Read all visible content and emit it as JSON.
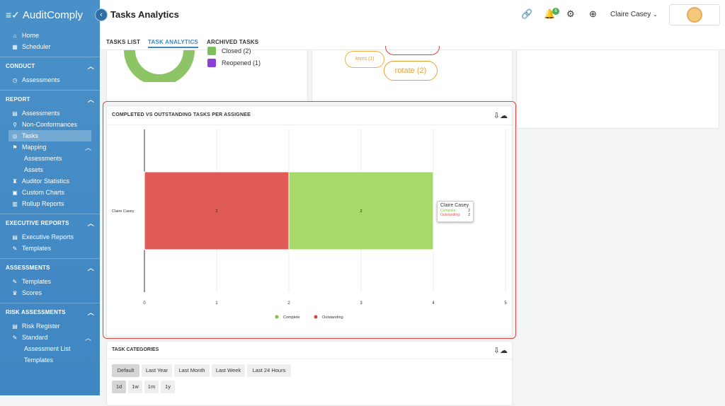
{
  "app": {
    "name": "AuditComply",
    "page_title": "Tasks Analytics"
  },
  "header": {
    "notification_count": "6",
    "user_name": "Claire Casey"
  },
  "sidebar": {
    "top": [
      {
        "label": "Home",
        "icon": "home-icon"
      },
      {
        "label": "Scheduler",
        "icon": "calendar-icon"
      }
    ],
    "sections": [
      {
        "title": "CONDUCT",
        "items": [
          {
            "label": "Assessments",
            "icon": "clock-icon"
          }
        ]
      },
      {
        "title": "REPORT",
        "items": [
          {
            "label": "Assessments",
            "icon": "list-icon"
          },
          {
            "label": "Non-Conformances",
            "icon": "search-icon"
          },
          {
            "label": "Tasks",
            "icon": "task-icon",
            "active": true
          },
          {
            "label": "Mapping",
            "icon": "pin-icon"
          },
          {
            "label": "Assessments",
            "sub": true
          },
          {
            "label": "Assets",
            "sub": true
          },
          {
            "label": "Auditor Statistics",
            "icon": "stats-icon"
          },
          {
            "label": "Custom Charts",
            "icon": "chart-icon"
          },
          {
            "label": "Rollup Reports",
            "icon": "report-icon"
          }
        ]
      },
      {
        "title": "EXECUTIVE REPORTS",
        "items": [
          {
            "label": "Executive Reports",
            "icon": "list-icon"
          },
          {
            "label": "Templates",
            "icon": "edit-icon"
          }
        ]
      },
      {
        "title": "ASSESSMENTS",
        "items": [
          {
            "label": "Templates",
            "icon": "edit-icon"
          },
          {
            "label": "Scores",
            "icon": "trophy-icon"
          }
        ]
      },
      {
        "title": "RISK ASSESSMENTS",
        "items": [
          {
            "label": "Risk Register",
            "icon": "list-icon"
          },
          {
            "label": "Standard",
            "icon": "edit-icon"
          },
          {
            "label": "Assessment List",
            "sub": true
          },
          {
            "label": "Templates",
            "sub": true
          }
        ]
      }
    ]
  },
  "tabs": [
    {
      "label": "TASKS LIST",
      "active": false
    },
    {
      "label": "TASK ANALYTICS",
      "active": true
    },
    {
      "label": "ARCHIVED TASKS",
      "active": false
    }
  ],
  "status_legend": [
    {
      "label": "Closed (2)",
      "color": "#7fbf5a"
    },
    {
      "label": "Reopened (1)",
      "color": "#8b3fd9"
    }
  ],
  "word_pills": [
    {
      "label": "items (1)"
    },
    {
      "label": "rotate (2)"
    }
  ],
  "assignee_chart": {
    "title": "COMPLETED VS OUTSTANDING TASKS PER ASSIGNEE",
    "tooltip": {
      "name": "Claire Casey",
      "rows": [
        {
          "label": "Complete:",
          "value": "2",
          "color": "#8ec25a"
        },
        {
          "label": "Outstanding:",
          "value": "2",
          "color": "#e05a50"
        }
      ]
    }
  },
  "chart_data": {
    "type": "bar",
    "orientation": "horizontal",
    "stacked": true,
    "title": "COMPLETED VS OUTSTANDING TASKS PER ASSIGNEE",
    "categories": [
      "Claire Casey"
    ],
    "series": [
      {
        "name": "Outstanding",
        "values": [
          2
        ],
        "color": "#e05a56"
      },
      {
        "name": "Complete",
        "values": [
          2
        ],
        "color": "#a6d96a"
      }
    ],
    "legend_order": [
      "Complete",
      "Outstanding"
    ],
    "legend_colors": [
      "#7fc241",
      "#d9433d"
    ],
    "xlim": [
      0,
      5
    ],
    "xticks": [
      "0",
      "1",
      "2",
      "3",
      "4",
      "5"
    ],
    "grid": true,
    "legend": "bottom-center"
  },
  "task_categories": {
    "title": "TASK CATEGORIES",
    "ranges": [
      {
        "label": "Default",
        "selected": true
      },
      {
        "label": "Last Year"
      },
      {
        "label": "Last Month"
      },
      {
        "label": "Last Week"
      },
      {
        "label": "Last 24 Hours"
      }
    ],
    "periods": [
      {
        "label": "1d",
        "selected": true
      },
      {
        "label": "1w"
      },
      {
        "label": "1m"
      },
      {
        "label": "1y"
      }
    ]
  }
}
